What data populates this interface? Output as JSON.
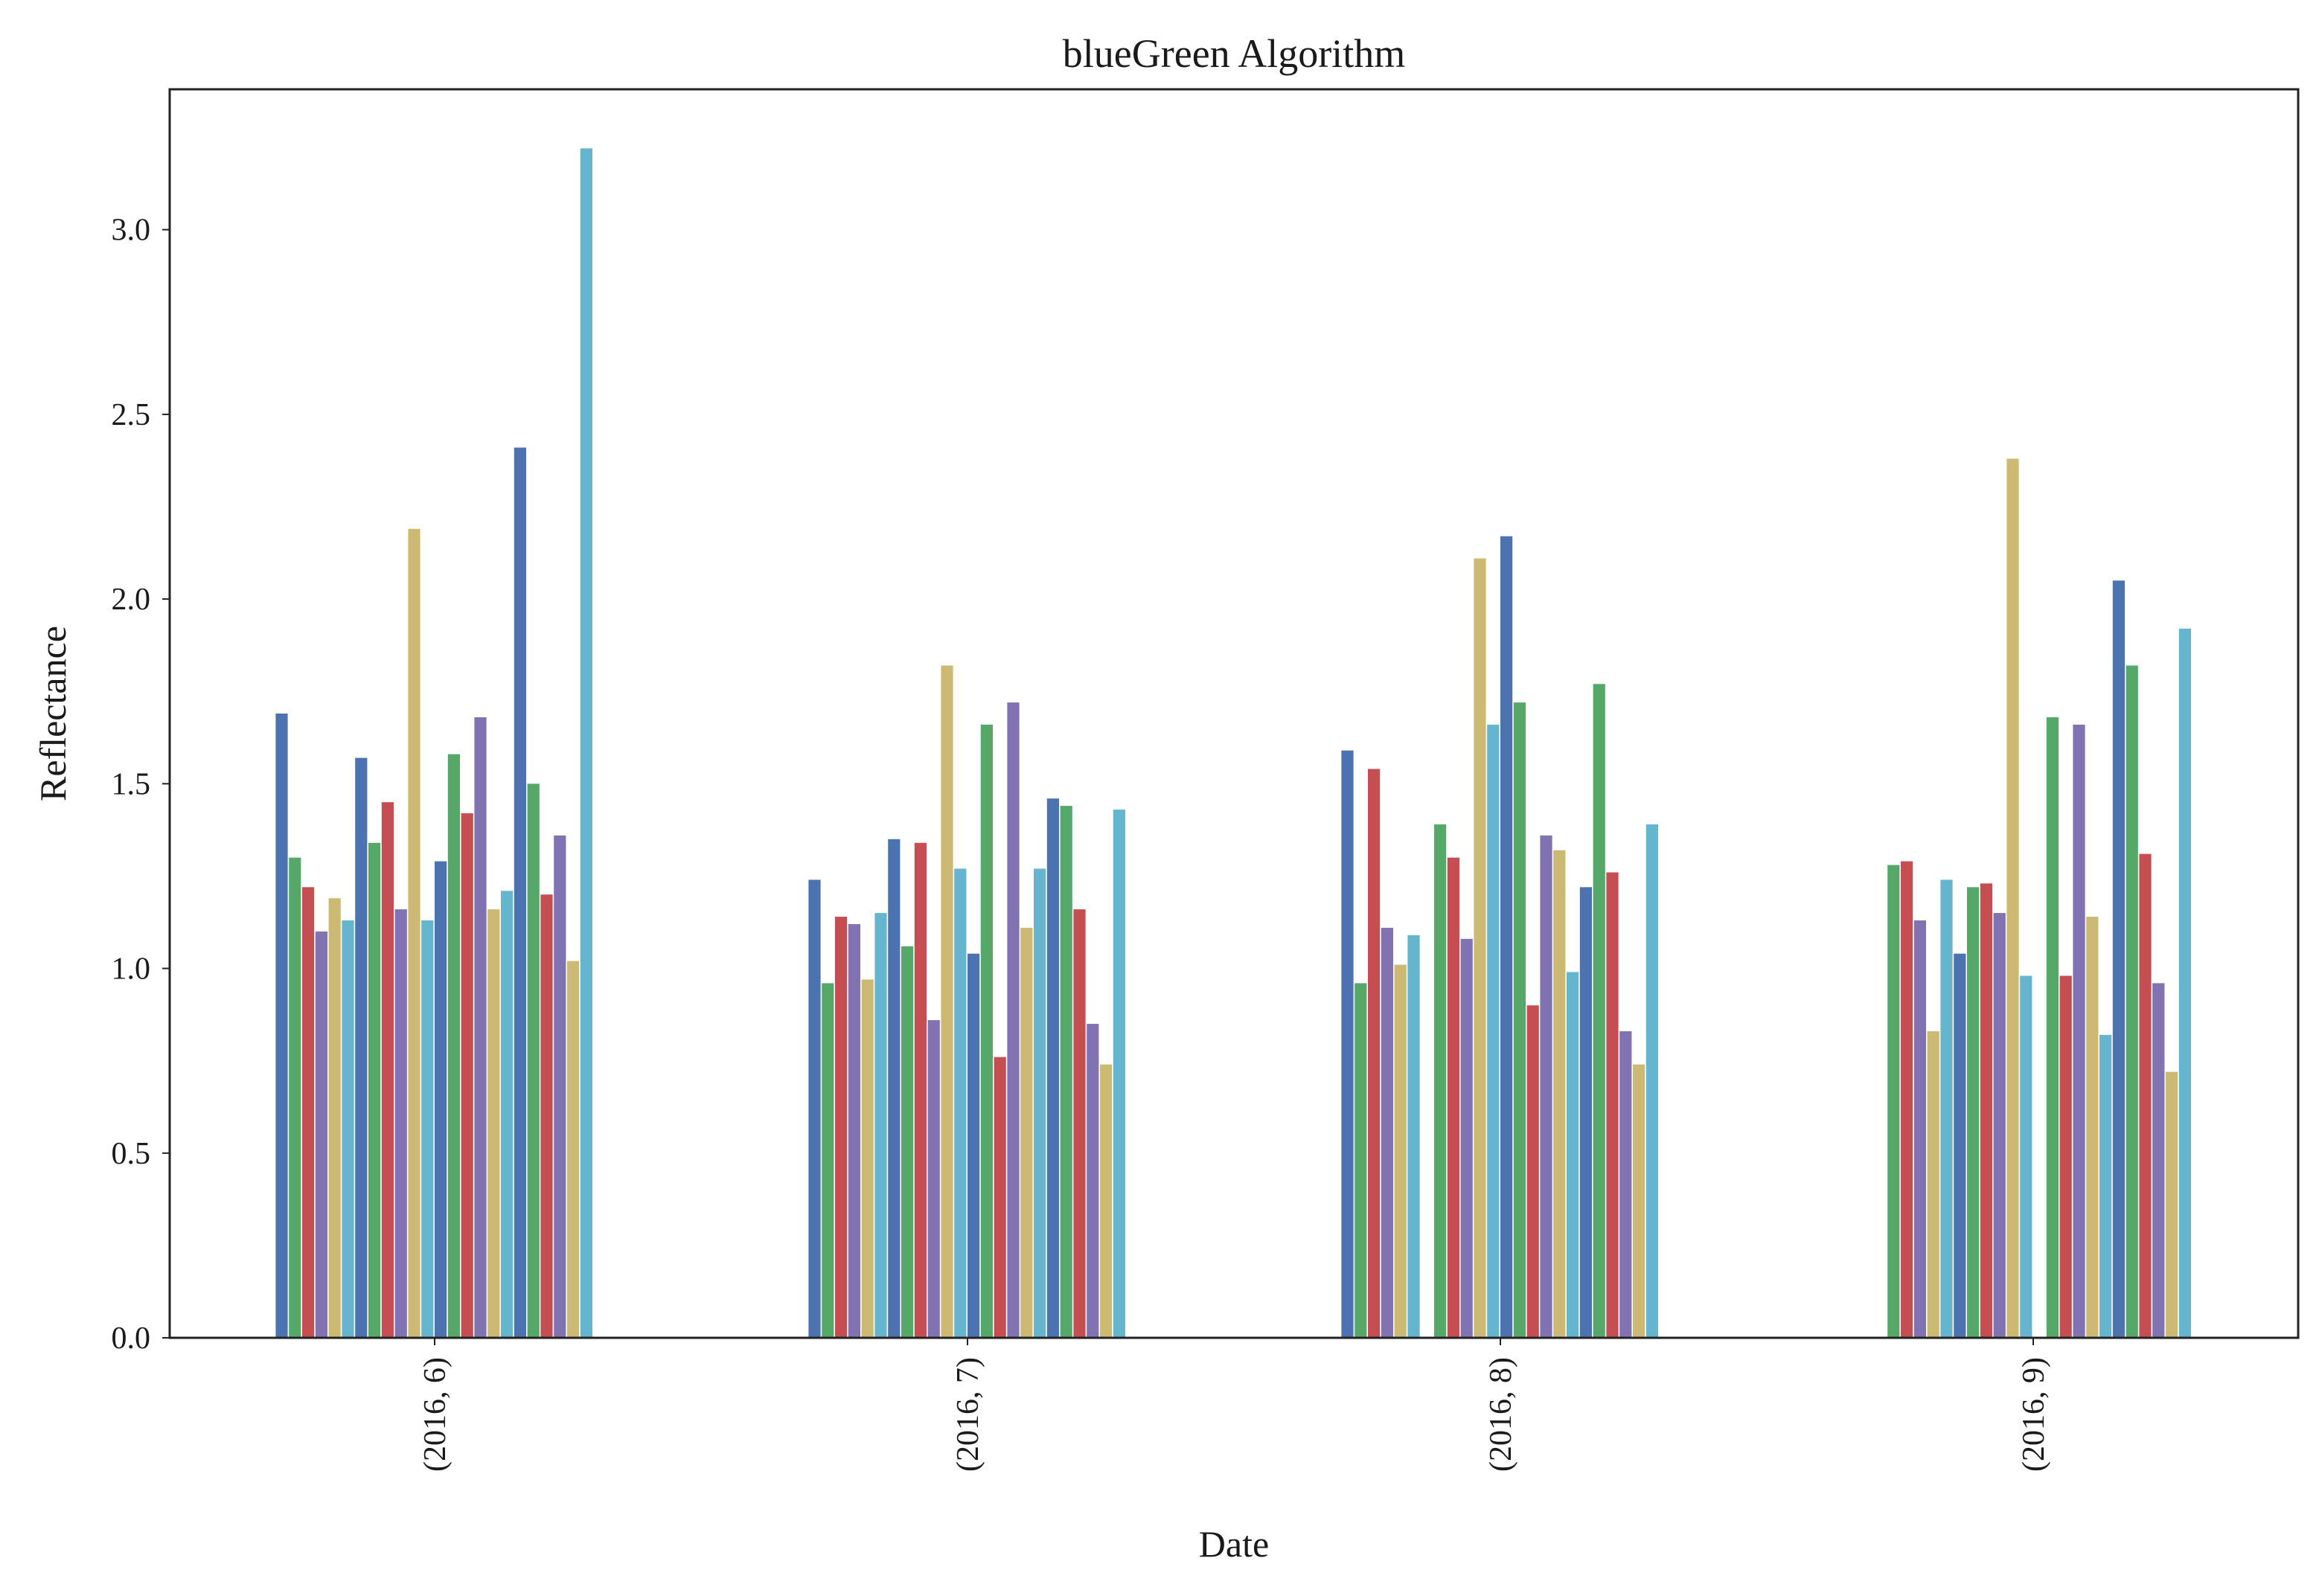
{
  "chart_data": {
    "type": "bar",
    "title": "blueGreen Algorithm",
    "xlabel": "Date",
    "ylabel": "Reflectance",
    "ylim": [
      0,
      3.38
    ],
    "yticks": [
      "0.0",
      "0.5",
      "1.0",
      "1.5",
      "2.0",
      "2.5",
      "3.0"
    ],
    "grid": false,
    "legend": "none",
    "categories": [
      "(2016, 6)",
      "(2016, 7)",
      "(2016, 8)",
      "(2016, 9)"
    ],
    "colors": [
      "#4c72b0",
      "#55a868",
      "#c44e52",
      "#8172b2",
      "#ccb974",
      "#64b5cd"
    ],
    "series": [
      {
        "values": [
          1.69,
          1.24,
          1.59,
          0.0
        ]
      },
      {
        "values": [
          1.3,
          0.96,
          0.96,
          1.28
        ]
      },
      {
        "values": [
          1.22,
          1.14,
          1.54,
          1.29
        ]
      },
      {
        "values": [
          1.1,
          1.12,
          1.11,
          1.13
        ]
      },
      {
        "values": [
          1.19,
          0.97,
          1.01,
          0.83
        ]
      },
      {
        "values": [
          1.13,
          1.15,
          1.09,
          1.24
        ]
      },
      {
        "values": [
          1.57,
          1.35,
          0.0,
          1.04
        ]
      },
      {
        "values": [
          1.34,
          1.06,
          1.39,
          1.22
        ]
      },
      {
        "values": [
          1.45,
          1.34,
          1.3,
          1.23
        ]
      },
      {
        "values": [
          1.16,
          0.86,
          1.08,
          1.15
        ]
      },
      {
        "values": [
          2.19,
          1.82,
          2.11,
          2.38
        ]
      },
      {
        "values": [
          1.13,
          1.27,
          1.66,
          0.98
        ]
      },
      {
        "values": [
          1.29,
          1.04,
          2.17,
          0.0
        ]
      },
      {
        "values": [
          1.58,
          1.66,
          1.72,
          1.68
        ]
      },
      {
        "values": [
          1.42,
          0.76,
          0.9,
          0.98
        ]
      },
      {
        "values": [
          1.68,
          1.72,
          1.36,
          1.66
        ]
      },
      {
        "values": [
          1.16,
          1.11,
          1.32,
          1.14
        ]
      },
      {
        "values": [
          1.21,
          1.27,
          0.99,
          0.82
        ]
      },
      {
        "values": [
          2.41,
          1.46,
          1.22,
          2.05
        ]
      },
      {
        "values": [
          1.5,
          1.44,
          1.77,
          1.82
        ]
      },
      {
        "values": [
          1.2,
          1.16,
          1.26,
          1.31
        ]
      },
      {
        "values": [
          1.36,
          0.85,
          0.83,
          0.96
        ]
      },
      {
        "values": [
          1.02,
          0.74,
          0.74,
          0.72
        ]
      },
      {
        "values": [
          3.22,
          1.43,
          1.39,
          1.92
        ]
      }
    ]
  }
}
